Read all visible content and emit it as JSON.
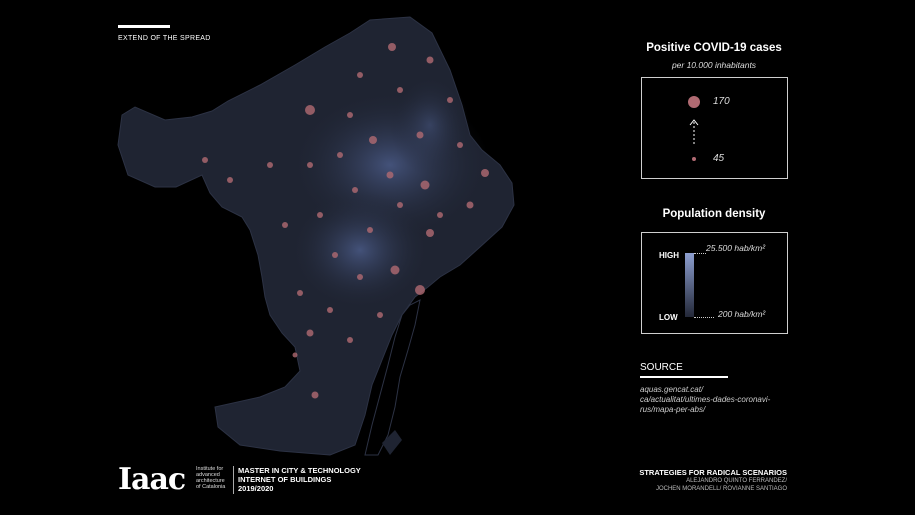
{
  "header": {
    "title": "EXTEND OF THE SPREAD"
  },
  "legend_cases": {
    "title": "Positive COVID-19 cases",
    "subtitle": "per 10.000 inhabitants",
    "max_label": "170",
    "min_label": "45",
    "dot_color": "#b06a72"
  },
  "legend_density": {
    "title": "Population density",
    "high_label": "HIGH",
    "low_label": "LOW",
    "high_value": "25.500 hab/km²",
    "low_value": "200 hab/km²",
    "high_color": "#8d9fd0",
    "low_color": "#232838"
  },
  "source": {
    "title": "SOURCE",
    "lines": [
      "aquas.gencat.cat/",
      "ca/actualitat/ultimes-dades-coronavi-",
      "rus/mapa-per-abs/"
    ]
  },
  "institution": {
    "logo": "Iaac",
    "name_lines": [
      "Institute for",
      "advanced",
      "architecture",
      "of Catalonia"
    ],
    "program_lines": [
      "MASTER IN CITY & TECHNOLOGY",
      "INTERNET OF BUILDINGS",
      "2019/2020"
    ]
  },
  "credits": {
    "title": "STRATEGIES FOR RADICAL SCENARIOS",
    "authors_lines": [
      "ALEJANDRO QUINTO FERRANDEZ/",
      "JOCHEN MORANDELL/ ROVIANNE SANTIAGO"
    ]
  },
  "map": {
    "land_color": "#1f2432",
    "sea_color": "#000000"
  }
}
